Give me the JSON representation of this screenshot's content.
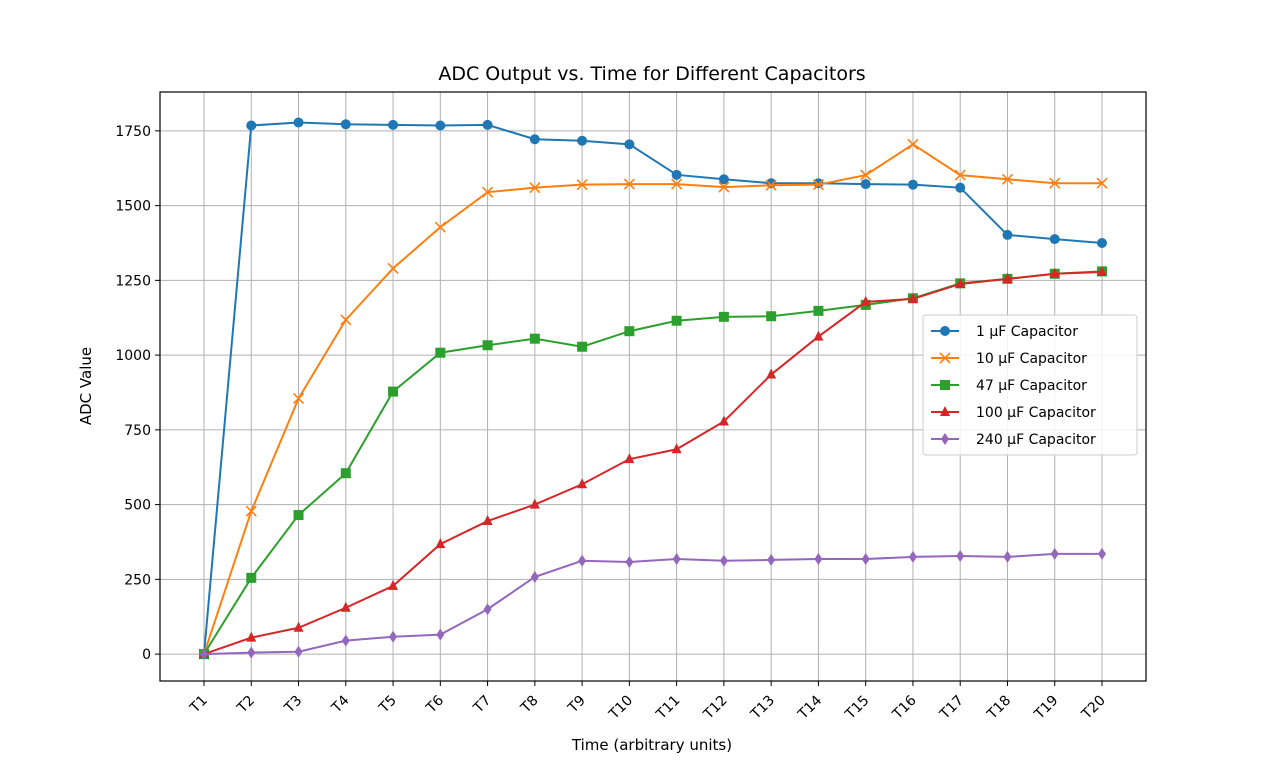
{
  "chart_data": {
    "type": "line",
    "title": "ADC Output vs. Time for Different Capacitors",
    "xlabel": "Time (arbitrary units)",
    "ylabel": "ADC Value",
    "categories": [
      "T1",
      "T2",
      "T3",
      "T4",
      "T5",
      "T6",
      "T7",
      "T8",
      "T9",
      "T10",
      "T11",
      "T12",
      "T13",
      "T14",
      "T15",
      "T16",
      "T17",
      "T18",
      "T19",
      "T20"
    ],
    "ylim": [
      -90,
      1880
    ],
    "yticks": [
      0,
      250,
      500,
      750,
      1000,
      1250,
      1500,
      1750
    ],
    "grid": true,
    "legend_position": "center-right",
    "series": [
      {
        "name": "1 µF Capacitor",
        "color": "#1f77b4",
        "marker": "circle",
        "values": [
          0,
          1768,
          1778,
          1772,
          1770,
          1768,
          1770,
          1722,
          1717,
          1705,
          1603,
          1588,
          1575,
          1575,
          1572,
          1570,
          1560,
          1402,
          1388,
          1375
        ]
      },
      {
        "name": "10 µF Capacitor",
        "color": "#ff7f0e",
        "marker": "x",
        "values": [
          0,
          478,
          855,
          1118,
          1290,
          1428,
          1545,
          1560,
          1570,
          1572,
          1572,
          1562,
          1568,
          1570,
          1602,
          1705,
          1602,
          1588,
          1575,
          1575
        ]
      },
      {
        "name": "47 µF Capacitor",
        "color": "#2ca02c",
        "marker": "square",
        "values": [
          0,
          255,
          465,
          605,
          878,
          1008,
          1033,
          1055,
          1028,
          1080,
          1115,
          1128,
          1130,
          1148,
          1168,
          1190,
          1240,
          1255,
          1272,
          1280
        ]
      },
      {
        "name": "100 µF Capacitor",
        "color": "#d62728",
        "marker": "triangle",
        "values": [
          0,
          55,
          88,
          155,
          228,
          368,
          445,
          500,
          568,
          652,
          685,
          778,
          935,
          1062,
          1178,
          1188,
          1238,
          1255,
          1272,
          1278
        ]
      },
      {
        "name": "240 µF Capacitor",
        "color": "#9467bd",
        "marker": "diamond",
        "values": [
          0,
          5,
          8,
          45,
          58,
          65,
          150,
          258,
          312,
          308,
          318,
          312,
          315,
          318,
          318,
          325,
          328,
          325,
          335,
          335
        ]
      }
    ]
  }
}
